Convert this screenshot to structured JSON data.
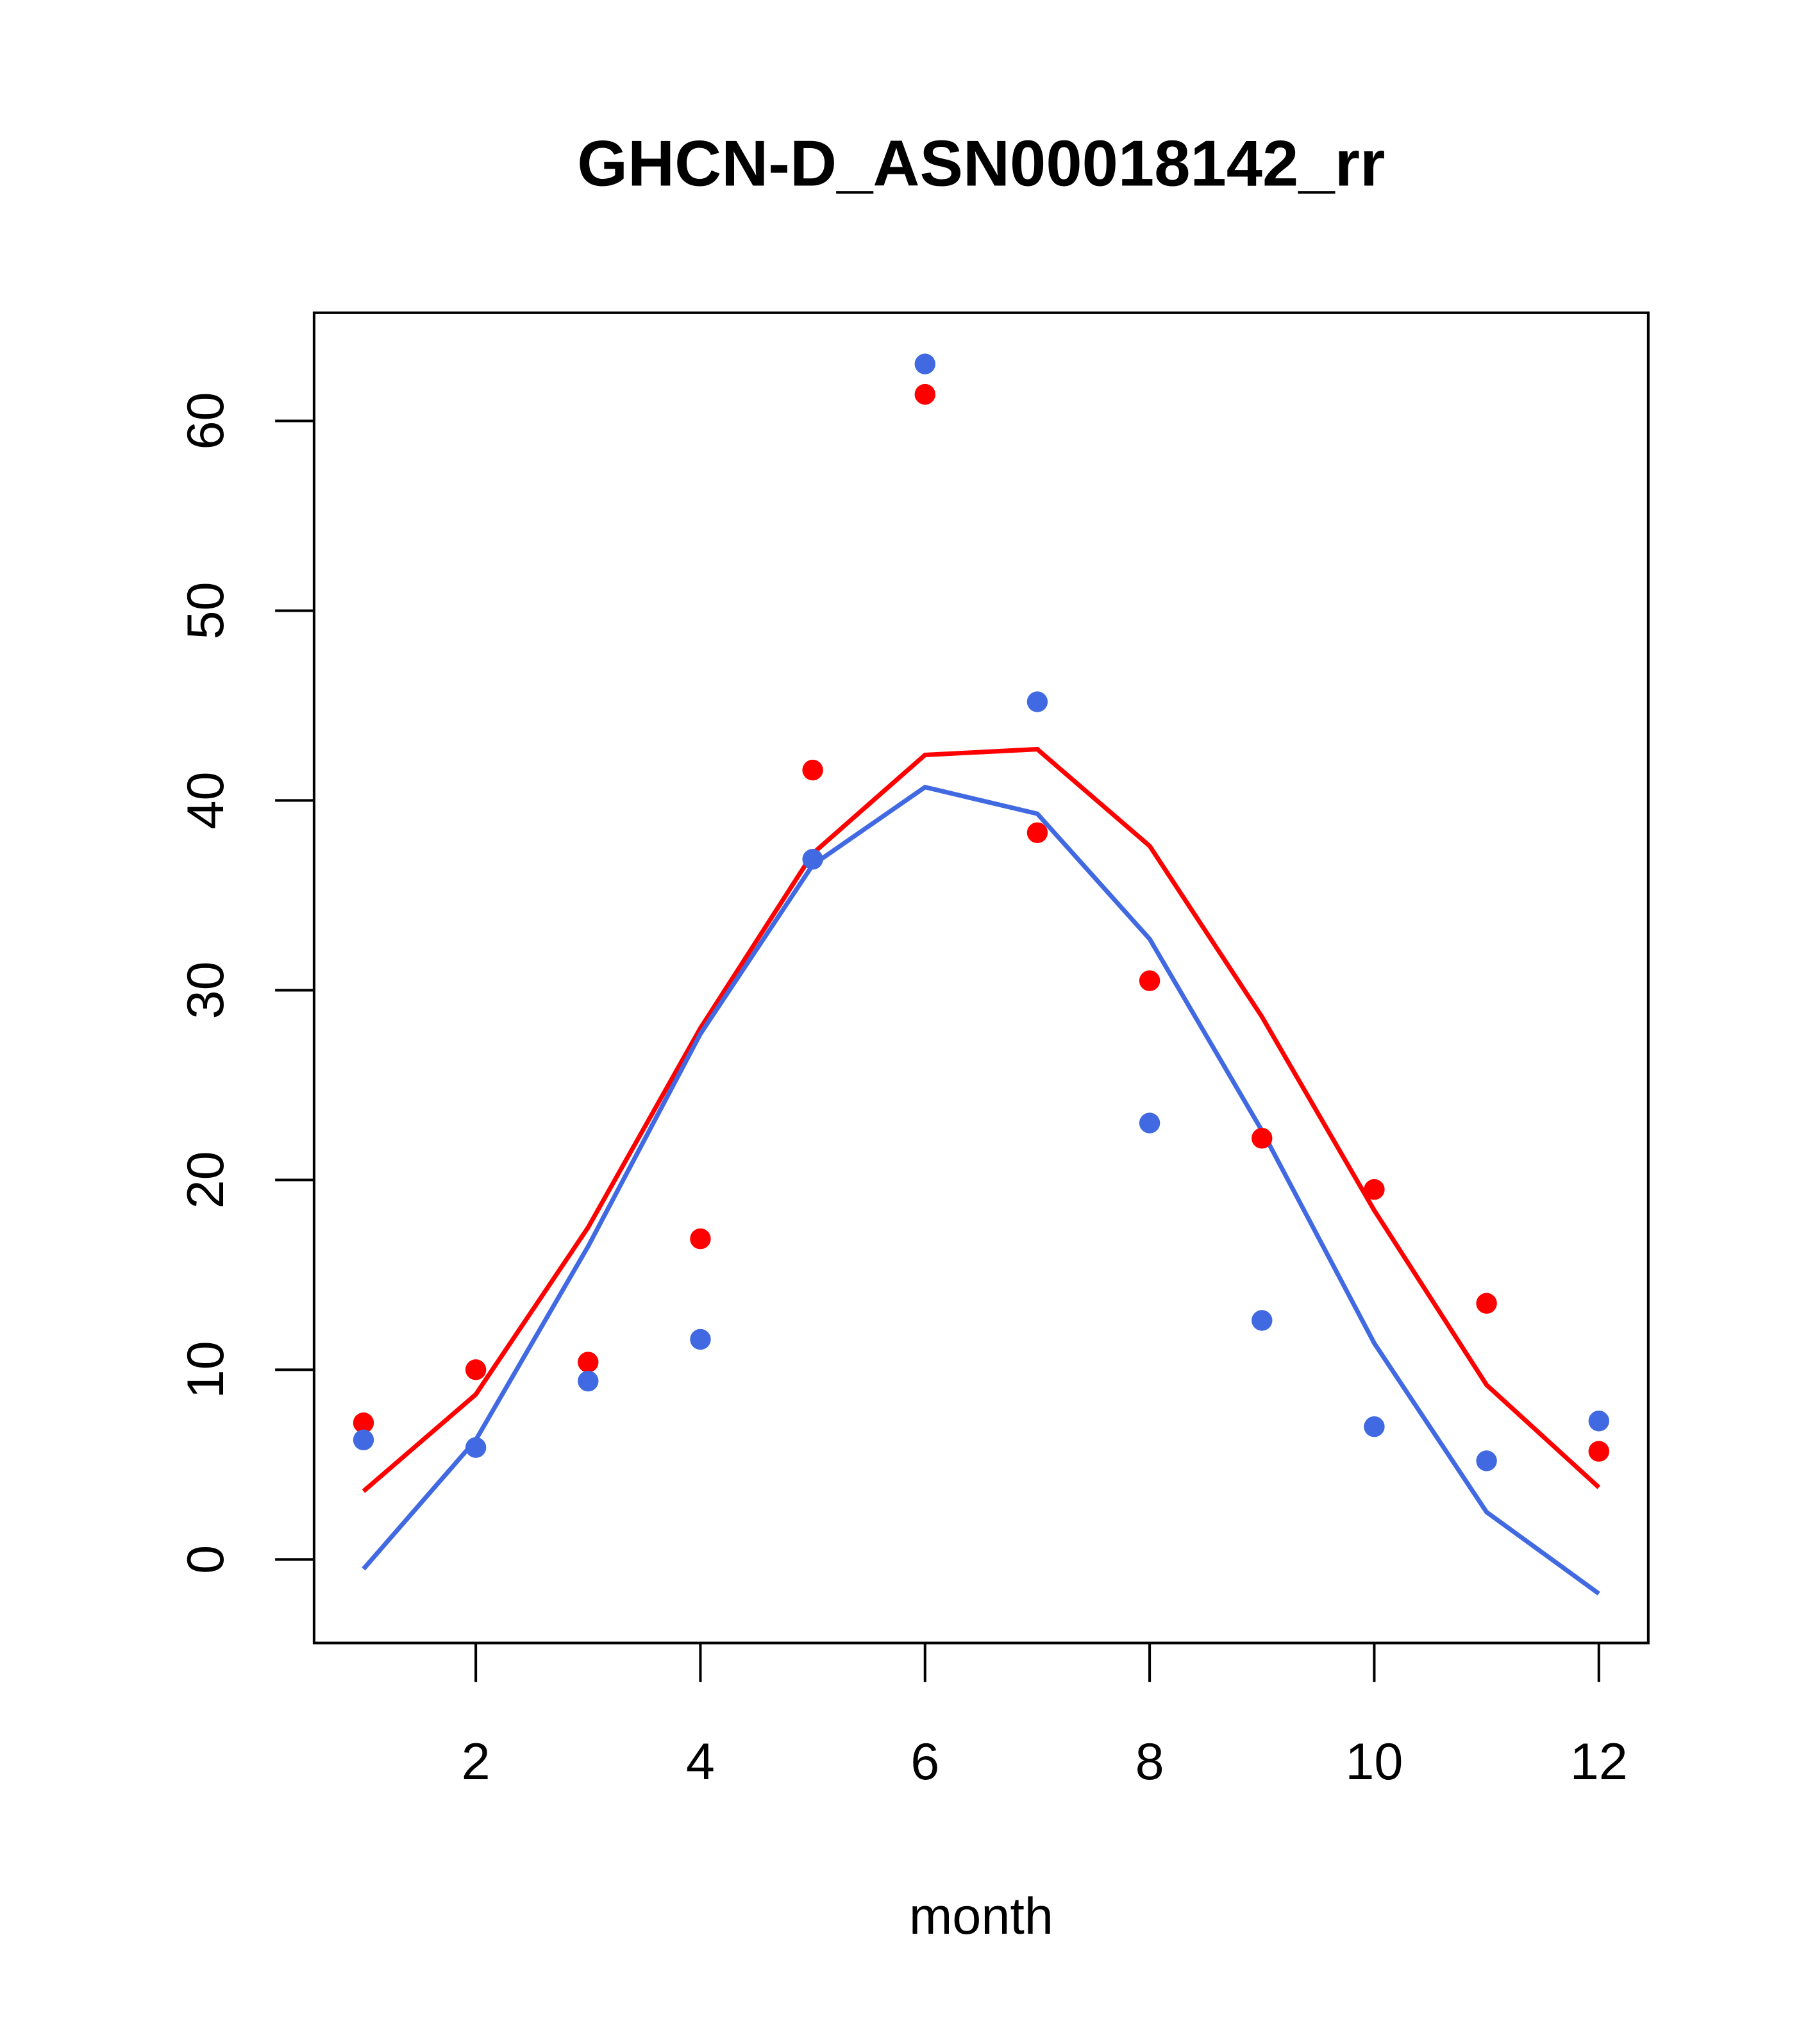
{
  "chart_data": {
    "type": "scatter",
    "title": "GHCN-D_ASN00018142_rr",
    "xlabel": "month",
    "ylabel": "",
    "xlim": [
      0.56,
      12.44
    ],
    "ylim": [
      -4.4,
      65.7
    ],
    "xticks": [
      2,
      4,
      6,
      8,
      10,
      12
    ],
    "xtick_labels": [
      "2",
      "4",
      "6",
      "8",
      "10",
      "12"
    ],
    "yticks": [
      0,
      10,
      20,
      30,
      40,
      50,
      60
    ],
    "ytick_labels": [
      "0",
      "10",
      "20",
      "30",
      "40",
      "50",
      "60"
    ],
    "grid": false,
    "x": [
      1,
      2,
      3,
      4,
      5,
      6,
      7,
      8,
      9,
      10,
      11,
      12
    ],
    "series": [
      {
        "name": "red points",
        "kind": "points",
        "color": "#ff0000",
        "values": [
          7.2,
          10.0,
          10.4,
          16.9,
          41.6,
          61.4,
          38.3,
          30.5,
          22.2,
          19.5,
          13.5,
          5.7
        ]
      },
      {
        "name": "blue points",
        "kind": "points",
        "color": "#4169e1",
        "values": [
          6.3,
          5.9,
          9.4,
          11.6,
          36.9,
          63.0,
          45.2,
          23.0,
          12.6,
          7.0,
          5.2,
          7.3
        ]
      },
      {
        "name": "red line",
        "kind": "line",
        "color": "#ff0000",
        "values": [
          3.6,
          8.7,
          17.5,
          28.0,
          37.2,
          42.4,
          42.7,
          37.6,
          28.6,
          18.4,
          9.2,
          3.8
        ]
      },
      {
        "name": "blue line",
        "kind": "line",
        "color": "#4169e1",
        "values": [
          -0.5,
          6.3,
          16.5,
          27.7,
          36.6,
          40.7,
          39.3,
          32.7,
          22.6,
          11.4,
          2.5,
          -1.8
        ]
      }
    ]
  }
}
